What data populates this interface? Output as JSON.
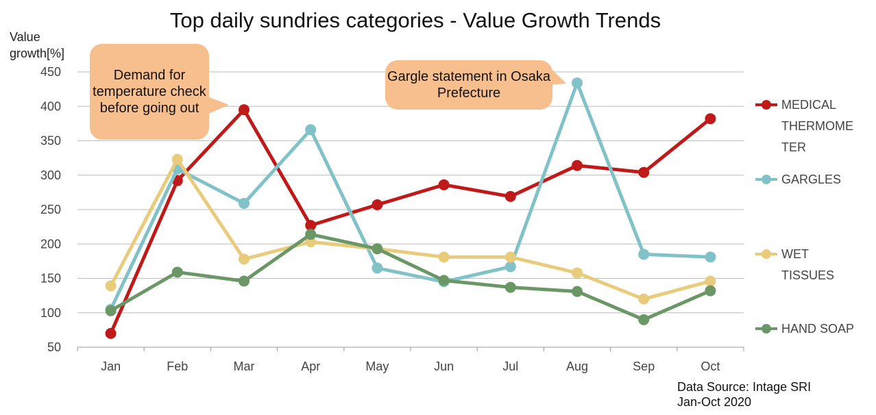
{
  "chart_data": {
    "type": "line",
    "title": "Top daily sundries categories - Value Growth Trends",
    "ylabel": "Value growth[%]",
    "xlabel": "",
    "categories": [
      "Jan",
      "Feb",
      "Mar",
      "Apr",
      "May",
      "Jun",
      "Jul",
      "Aug",
      "Sep",
      "Oct"
    ],
    "ylim": [
      50,
      450
    ],
    "yticks": [
      50,
      100,
      150,
      200,
      250,
      300,
      350,
      400,
      450
    ],
    "grid": true,
    "legend": "right",
    "series": [
      {
        "name": "MEDICAL THERMOMETER",
        "color": "#C0191A",
        "values": [
          70,
          292,
          395,
          227,
          257,
          286,
          269,
          314,
          304,
          382
        ]
      },
      {
        "name": "GARGLES",
        "color": "#80C2C8",
        "values": [
          105,
          309,
          259,
          366,
          165,
          145,
          167,
          434,
          185,
          181
        ]
      },
      {
        "name": "WET TISSUES",
        "color": "#E8CC7C",
        "values": [
          139,
          323,
          178,
          203,
          193,
          181,
          181,
          158,
          120,
          146
        ]
      },
      {
        "name": "HAND SOAP",
        "color": "#6B9767",
        "values": [
          103,
          159,
          146,
          214,
          193,
          147,
          137,
          131,
          90,
          132
        ]
      }
    ],
    "annotations": [
      {
        "text": "Demand for temperature check before going out",
        "color": "#F7BE8E"
      },
      {
        "text": "Gargle statement in Osaka Prefecture",
        "color": "#F7BE8E"
      }
    ],
    "source": [
      "Data Source: Intage SRI",
      "Jan-Oct 2020"
    ]
  }
}
